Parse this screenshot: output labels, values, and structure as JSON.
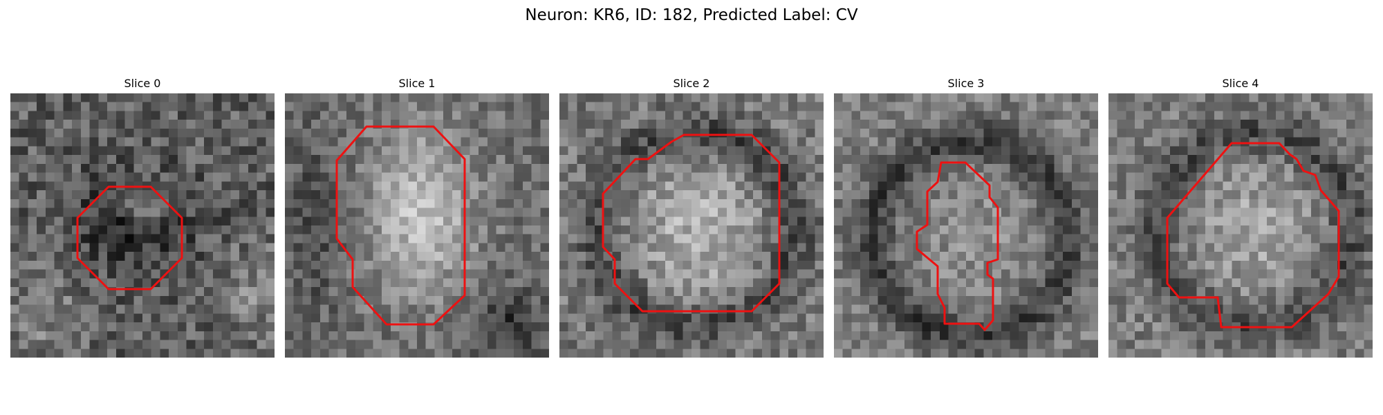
{
  "figure": {
    "title": "Neuron: KR6, ID: 182, Predicted Label: CV",
    "outline_color": "#ee1111",
    "image_colormap": "grayscale"
  },
  "slices": [
    {
      "title": "Slice 0"
    },
    {
      "title": "Slice 1"
    },
    {
      "title": "Slice 2"
    },
    {
      "title": "Slice 3"
    },
    {
      "title": "Slice 4"
    }
  ]
}
